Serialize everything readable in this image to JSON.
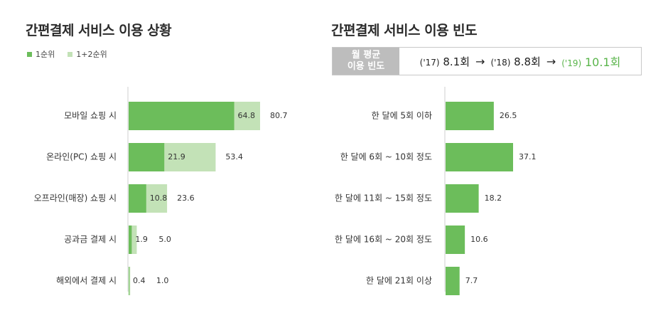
{
  "left_title": "간편결제 서비스 이용 상황",
  "right_title": "간편결제 서비스 이용 빈도",
  "legend": {
    "items": [
      {
        "label": "1순위",
        "color": "#6cbd5b"
      },
      {
        "label": "1+2순위",
        "color": "#c3e2b7"
      }
    ]
  },
  "frequency_box": {
    "label_line1": "월 평균",
    "label_line2": "이용 빈도",
    "entries": [
      {
        "year": "('17)",
        "value": "8.1회"
      },
      {
        "year": "('18)",
        "value": "8.8회"
      },
      {
        "year": "('19)",
        "value": "10.1회"
      }
    ],
    "arrow": "→",
    "highlight_color": "#5ab54b"
  },
  "chart_data": [
    {
      "type": "bar",
      "orientation": "horizontal",
      "title": "간편결제 서비스 이용 상황",
      "categories": [
        "모바일 쇼핑 시",
        "온라인(PC) 쇼핑 시",
        "오프라인(매장) 쇼핑 시",
        "공과금 결제 시",
        "해외에서 결제 시"
      ],
      "series": [
        {
          "name": "1순위",
          "values": [
            64.8,
            21.9,
            10.8,
            1.9,
            0.4
          ],
          "color": "#6cbd5b"
        },
        {
          "name": "1+2순위",
          "values": [
            80.7,
            53.4,
            23.6,
            5.0,
            1.0
          ],
          "color": "#c3e2b7"
        }
      ],
      "value_labels": [
        [
          "64.8",
          "80.7"
        ],
        [
          "21.9",
          "53.4"
        ],
        [
          "10.8",
          "23.6"
        ],
        [
          "1.9",
          "5.0"
        ],
        [
          "0.4",
          "1.0"
        ]
      ],
      "xlim": [
        0,
        100
      ],
      "grid": false,
      "legend_position": "top-left"
    },
    {
      "type": "bar",
      "orientation": "horizontal",
      "title": "간편결제 서비스 이용 빈도",
      "categories": [
        "한 달에 5회 이하",
        "한 달에 6회 ~ 10회 정도",
        "한 달에 11회 ~ 15회 정도",
        "한 달에 16회 ~ 20회 정도",
        "한 달에 21회 이상"
      ],
      "series": [
        {
          "values": [
            26.5,
            37.1,
            18.2,
            10.6,
            7.7
          ],
          "color": "#6cbd5b"
        }
      ],
      "value_labels": [
        "26.5",
        "37.1",
        "18.2",
        "10.6",
        "7.7"
      ],
      "xlim": [
        0,
        100
      ],
      "grid": false
    }
  ]
}
